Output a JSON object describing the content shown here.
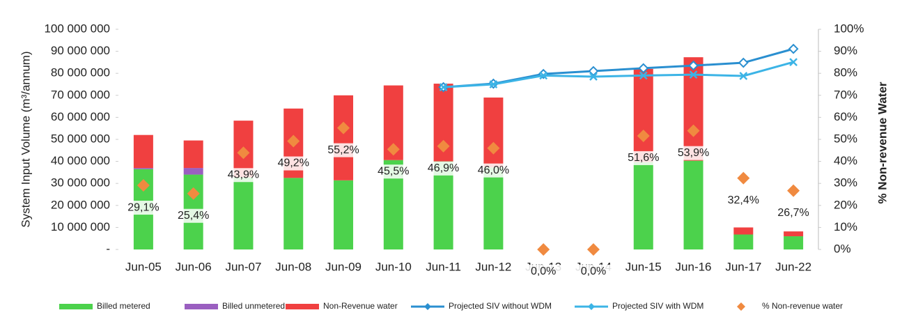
{
  "chart_data": {
    "type": "bar",
    "stacked": true,
    "y_label": "System Input Volume (m³/annum)",
    "y2_label": "% Non-revenue Water",
    "categories": [
      "Jun-05",
      "Jun-06",
      "Jun-07",
      "Jun-08",
      "Jun-09",
      "Jun-10",
      "Jun-11",
      "Jun-12",
      "Jun-13",
      "Jun-14",
      "Jun-15",
      "Jun-16",
      "Jun-17",
      "Jun-22"
    ],
    "ylim": [
      0,
      100000000
    ],
    "yticks": [
      {
        "value": 0,
        "label": "-"
      },
      {
        "value": 10000000,
        "label": "10 000 000"
      },
      {
        "value": 20000000,
        "label": "20 000 000"
      },
      {
        "value": 30000000,
        "label": "30 000 000"
      },
      {
        "value": 40000000,
        "label": "40 000 000"
      },
      {
        "value": 50000000,
        "label": "50 000 000"
      },
      {
        "value": 60000000,
        "label": "60 000 000"
      },
      {
        "value": 70000000,
        "label": "70 000 000"
      },
      {
        "value": 80000000,
        "label": "80 000 000"
      },
      {
        "value": 90000000,
        "label": "90 000 000"
      },
      {
        "value": 100000000,
        "label": "100 000 000"
      }
    ],
    "y2lim": [
      0,
      100
    ],
    "y2ticks": [
      {
        "value": 0,
        "label": "0%"
      },
      {
        "value": 10,
        "label": "10%"
      },
      {
        "value": 20,
        "label": "20%"
      },
      {
        "value": 30,
        "label": "30%"
      },
      {
        "value": 40,
        "label": "40%"
      },
      {
        "value": 50,
        "label": "50%"
      },
      {
        "value": 60,
        "label": "60%"
      },
      {
        "value": 70,
        "label": "70%"
      },
      {
        "value": 80,
        "label": "80%"
      },
      {
        "value": 90,
        "label": "90%"
      },
      {
        "value": 100,
        "label": "100%"
      }
    ],
    "legend": "bottom",
    "series": [
      {
        "name": "Billed metered",
        "type": "bar",
        "color": "#4cd24c",
        "values": [
          36500000,
          34000000,
          32800000,
          32500000,
          31400000,
          40600000,
          40000000,
          37300000,
          null,
          null,
          39700000,
          40300000,
          6800000,
          6000000
        ]
      },
      {
        "name": "Billed unmetered",
        "type": "bar",
        "color": "#9a5fc0",
        "values": [
          500000,
          3000000,
          0,
          0,
          0,
          0,
          0,
          0,
          null,
          null,
          0,
          0,
          0,
          0
        ]
      },
      {
        "name": "Non-Revenue water",
        "type": "bar",
        "color": "#f04040",
        "values": [
          15000000,
          12500000,
          25700000,
          31500000,
          38600000,
          33900000,
          35300000,
          31700000,
          null,
          null,
          42300000,
          47000000,
          3200000,
          2200000
        ]
      },
      {
        "name": "Projected SIV without WDM",
        "type": "line",
        "color": "#2a8fd0",
        "marker": "diamond",
        "values": [
          null,
          null,
          null,
          null,
          null,
          null,
          73700000,
          75300000,
          79700000,
          81000000,
          82300000,
          83500000,
          84800000,
          91100000
        ]
      },
      {
        "name": "Projected SIV with WDM",
        "type": "line",
        "color": "#3cb4e6",
        "marker": "x",
        "values": [
          null,
          null,
          null,
          null,
          null,
          null,
          73700000,
          75000000,
          79000000,
          78500000,
          79000000,
          79400000,
          78800000,
          85100000
        ]
      },
      {
        "name": "% Non-revenue water",
        "type": "scatter",
        "axis": "y2",
        "color": "#f08a40",
        "values": [
          29.1,
          25.4,
          43.9,
          49.2,
          55.2,
          45.5,
          46.9,
          46.0,
          0,
          0,
          51.6,
          53.9,
          32.4,
          26.7
        ],
        "value_labels": [
          "29,1%",
          "25,4%",
          "43,9%",
          "49,2%",
          "55,2%",
          "45,5%",
          "46,9%",
          "46,0%",
          "0,0%",
          "0,0%",
          "51,6%",
          "53,9%",
          "32,4%",
          "26,7%"
        ]
      }
    ]
  }
}
